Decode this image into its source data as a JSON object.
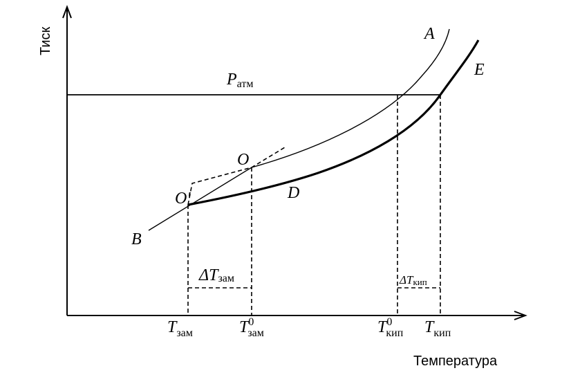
{
  "axes": {
    "y_label": "Тиск",
    "x_label": "Температура"
  },
  "labels": {
    "p_atm": {
      "main": "P",
      "sub": "атм"
    },
    "a": "A",
    "e": "E",
    "o": "O",
    "o_prime": "O′",
    "d": "D",
    "b": "B",
    "delta_t_freeze": {
      "main": "ΔT",
      "sub": "зам"
    },
    "delta_t_boil": {
      "main": "ΔT",
      "sub": "кип"
    },
    "t_freeze": {
      "main": "T",
      "sub": "зам"
    },
    "t0_freeze": {
      "main": "T",
      "sup": "0",
      "sub": "зам"
    },
    "t0_boil": {
      "main": "T",
      "sup": "0",
      "sub": "кип"
    },
    "t_boil": {
      "main": "T",
      "sub": "кип"
    }
  }
}
